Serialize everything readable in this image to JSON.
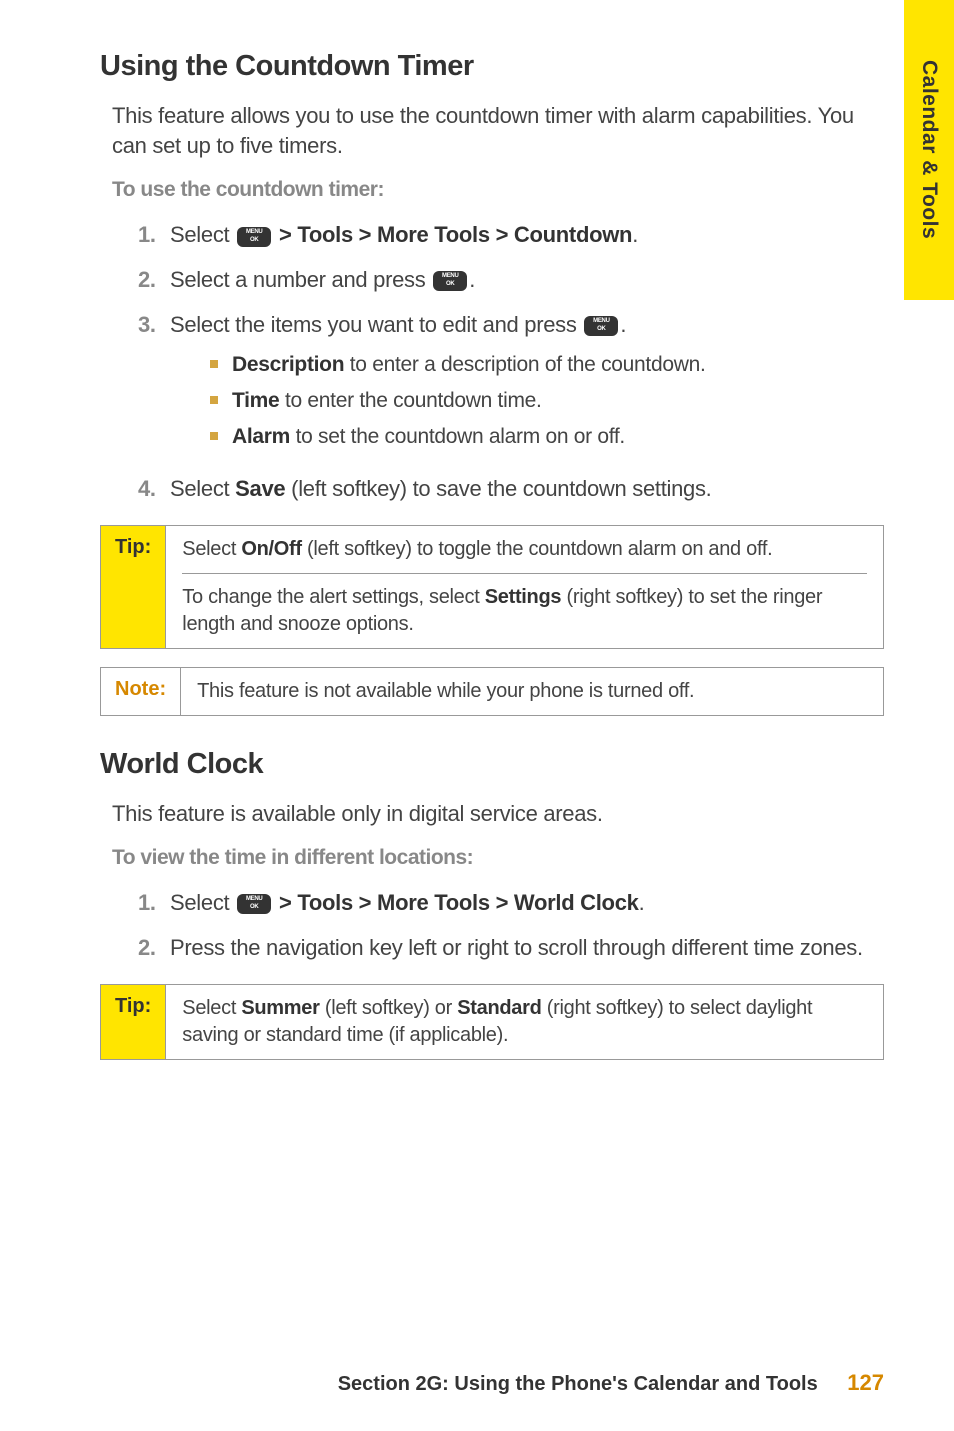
{
  "sideTab": "Calendar & Tools",
  "section1": {
    "title": "Using the Countdown Timer",
    "intro": "This feature allows you to use the countdown timer with alarm capabilities. You can set up to five timers.",
    "subhead": "To use the countdown timer:",
    "steps": {
      "s1_prefix": "Select ",
      "s1_suffix": " > Tools > More Tools > Countdown",
      "s1_end": ".",
      "s2_prefix": "Select a number and press ",
      "s2_end": ".",
      "s3_prefix": "Select the items you want to edit and press ",
      "s3_end": ".",
      "s3_sub1_b": "Description",
      "s3_sub1_t": " to enter a description of the countdown.",
      "s3_sub2_b": "Time",
      "s3_sub2_t": " to enter the countdown time.",
      "s3_sub3_b": "Alarm",
      "s3_sub3_t": " to set the countdown alarm on or off.",
      "s4_prefix": "Select ",
      "s4_b": "Save",
      "s4_suffix": " (left softkey) to save the countdown settings."
    },
    "tip": {
      "label": "Tip:",
      "p1_a": "Select ",
      "p1_b": "On/Off",
      "p1_c": " (left softkey) to toggle the countdown alarm on and off.",
      "p2_a": "To change the alert settings, select ",
      "p2_b": "Settings",
      "p2_c": " (right softkey) to set the ringer length and snooze options."
    },
    "note": {
      "label": "Note:",
      "text": "This feature is not available while your phone is turned off."
    }
  },
  "section2": {
    "title": "World Clock",
    "intro": "This feature is available only in digital service areas.",
    "subhead": "To view the time in different locations:",
    "steps": {
      "s1_prefix": "Select ",
      "s1_suffix": " > Tools > More Tools > World Clock",
      "s1_end": ".",
      "s2": "Press the navigation key left or right to scroll through different time zones."
    },
    "tip": {
      "label": "Tip:",
      "a": "Select ",
      "b1": "Summer",
      "c": " (left softkey) or ",
      "b2": "Standard",
      "d": " (right softkey) to select daylight saving or standard time (if applicable)."
    }
  },
  "footer": {
    "text": "Section 2G: Using the Phone's Calendar and Tools",
    "page": "127"
  }
}
